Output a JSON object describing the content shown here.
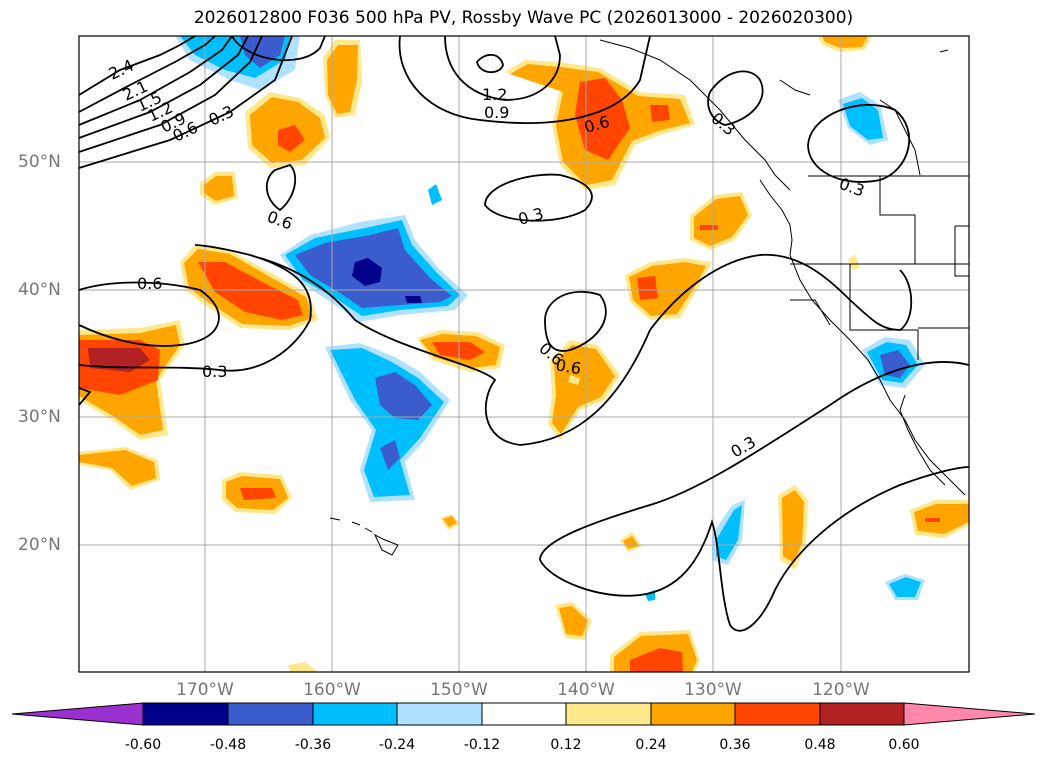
{
  "title": "2026012800 F036 500 hPa PV, Rossby Wave PC (2026013000 - 2026020300)",
  "latitude_labels": [
    "50°N",
    "40°N",
    "30°N",
    "20°N"
  ],
  "longitude_labels": [
    "170°W",
    "160°W",
    "150°W",
    "140°W",
    "130°W",
    "120°W"
  ],
  "contour_labels": [
    "2.4",
    "2.1",
    "1.5",
    "1.2",
    "0.9",
    "0.6",
    "0.3",
    "0.6",
    "1.2",
    "0.9",
    "0.6",
    "0.3",
    "0.3",
    "0.6",
    "0.6",
    "0.3",
    "0.6",
    "0.3",
    "0.3"
  ],
  "colorbar": {
    "ticks": [
      "-0.60",
      "-0.48",
      "-0.36",
      "-0.24",
      "-0.12",
      "0.12",
      "0.24",
      "0.36",
      "0.48",
      "0.60"
    ],
    "colors": {
      "under": "#9b30d0",
      "b1": "#00008b",
      "b2": "#3a5ccc",
      "b3": "#00bfff",
      "b4": "#b0e2ff",
      "b5": "#ffffff",
      "b6": "#ffe88c",
      "b7": "#ffa500",
      "b8": "#ff4500",
      "b9": "#b22222",
      "over": "#ff88aa"
    }
  }
}
